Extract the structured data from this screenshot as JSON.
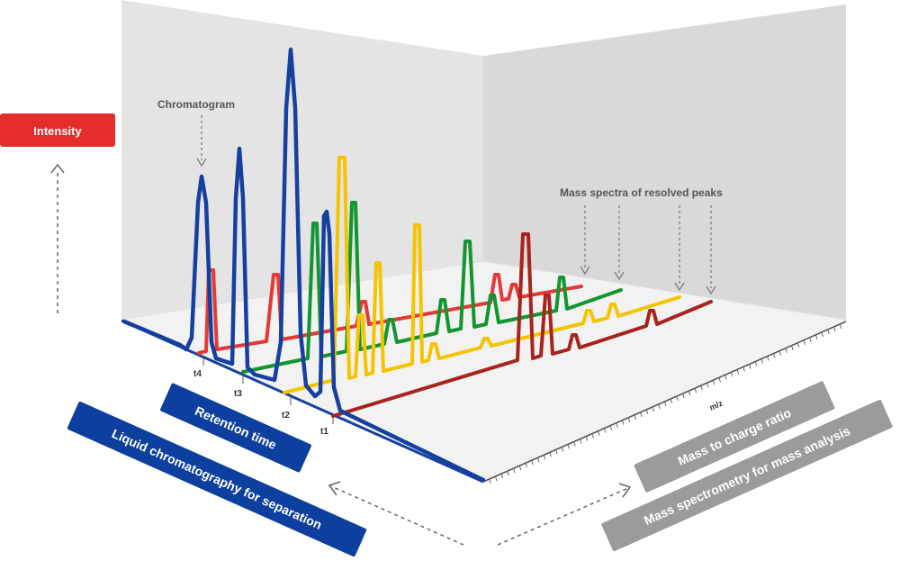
{
  "labels": {
    "intensity": "Intensity",
    "chromatogram": "Chromatogram",
    "mass_spectra": "Mass spectra of resolved peaks",
    "mz": "m/z",
    "retention_time": "Retention time",
    "liquid_chromatography": "Liquid chromatography for separation",
    "mass_to_charge": "Mass to charge ratio",
    "mass_spectrometry": "Mass spectrometry for mass analysis"
  },
  "time_ticks": [
    "t4",
    "t3",
    "t2",
    "t1"
  ],
  "colors": {
    "red_label": "#e52d2d",
    "blue_label": "#0d3f9e",
    "gray_label": "#9b9b9b",
    "chromatogram_blue": "#1640a0",
    "spectrum_red": "#e53935",
    "spectrum_green": "#12962f",
    "spectrum_yellow": "#f5c400",
    "spectrum_darkred": "#a8231d",
    "wall_left": "#e4e4e4",
    "wall_right": "#dcdcdc",
    "floor": "#f1f1f1"
  }
}
